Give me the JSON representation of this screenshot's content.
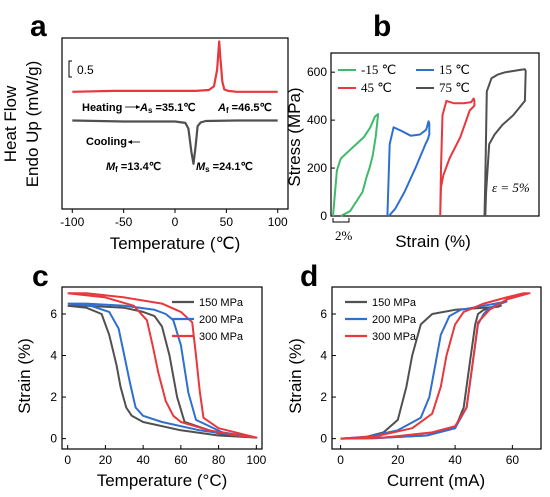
{
  "chart_data": [
    {
      "panel": "a",
      "type": "line",
      "xlabel": "Temperature (℃)",
      "ylabel_line1": "Heat Flow",
      "ylabel_line2": "Endo Up (mW/g)",
      "xlim": [
        -110,
        110
      ],
      "xticks": [
        "-100",
        "-50",
        "0",
        "50",
        "100"
      ],
      "xtick_values": [
        -100,
        -50,
        0,
        50,
        100
      ],
      "scale_bar_label": "0.5",
      "colors": {
        "heating": "#e8383d",
        "cooling": "#505050"
      },
      "labels": {
        "heating": "Heating",
        "cooling": "Cooling",
        "as_sym": "A",
        "as_sub": "s",
        "as_val": " =35.1℃",
        "af_sym": "A",
        "af_sub": "f",
        "af_val": " =46.5℃",
        "mf_sym": "M",
        "mf_sub": "f",
        "mf_val": " =13.4℃",
        "ms_sym": "M",
        "ms_sub": "s",
        "ms_val": " =24.1℃"
      },
      "series": [
        {
          "name": "Heating",
          "x": [
            -100,
            -60,
            -20,
            20,
            33,
            38,
            41,
            43,
            44,
            46,
            48,
            52,
            60,
            100
          ],
          "y": [
            0.28,
            0.3,
            0.3,
            0.3,
            0.32,
            0.4,
            0.75,
            1.35,
            1.05,
            0.5,
            0.33,
            0.3,
            0.28,
            0.28
          ]
        },
        {
          "name": "Cooling",
          "x": [
            -100,
            -50,
            0,
            10,
            13,
            16,
            18,
            20,
            22,
            25,
            30,
            60,
            100
          ],
          "y": [
            -0.33,
            -0.35,
            -0.35,
            -0.38,
            -0.5,
            -1.0,
            -1.25,
            -0.9,
            -0.45,
            -0.37,
            -0.34,
            -0.33,
            -0.33
          ]
        }
      ]
    },
    {
      "panel": "b",
      "type": "line",
      "xlabel": "Strain (%)",
      "ylabel": "Stress (MPa)",
      "ylim": [
        0,
        680
      ],
      "yticks": [
        "0",
        "200",
        "400",
        "600"
      ],
      "ytick_values": [
        0,
        200,
        400,
        600
      ],
      "scale_bar_label": "2%",
      "epsilon_label": "ε = 5%",
      "series": [
        {
          "name": "-15 ℃",
          "color": "#3dbb6a",
          "x": [
            0,
            0.25,
            0.5,
            1.0,
            1.5,
            2.0,
            2.4,
            2.7,
            2.9,
            2.75,
            2.55,
            2.35,
            2.15,
            1.9,
            1.1,
            0.5
          ],
          "y": [
            0,
            190,
            240,
            270,
            300,
            330,
            370,
            415,
            425,
            330,
            250,
            200,
            160,
            100,
            20,
            0
          ]
        },
        {
          "name": "15 ℃",
          "color": "#2f6fd0",
          "x": [
            3.5,
            3.65,
            3.9,
            4.4,
            5.0,
            5.6,
            6.0,
            6.15,
            6.2,
            6.2,
            6.1,
            5.95,
            5.3,
            4.6,
            4.0,
            3.6
          ],
          "y": [
            0,
            300,
            370,
            355,
            335,
            340,
            360,
            395,
            385,
            340,
            320,
            300,
            200,
            100,
            30,
            0
          ]
        },
        {
          "name": "45 ℃",
          "color": "#e8383d",
          "x": [
            6.9,
            6.95,
            7.05,
            7.3,
            7.8,
            8.4,
            8.9,
            9.05,
            9.1,
            9.1,
            8.8,
            8.2,
            7.5,
            7.1,
            6.95,
            6.9
          ],
          "y": [
            0,
            200,
            420,
            480,
            470,
            470,
            475,
            490,
            480,
            460,
            440,
            330,
            240,
            170,
            120,
            0
          ]
        },
        {
          "name": "75 ℃",
          "color": "#505050",
          "x": [
            9.75,
            9.8,
            9.9,
            10.2,
            10.6,
            11.1,
            11.6,
            12.1,
            12.35,
            12.4,
            12.35,
            11.6,
            10.9,
            10.4,
            10.05,
            9.85,
            9.8
          ],
          "y": [
            0,
            150,
            520,
            575,
            590,
            600,
            605,
            610,
            612,
            605,
            480,
            420,
            380,
            340,
            300,
            100,
            0
          ]
        }
      ]
    },
    {
      "panel": "c",
      "type": "line",
      "xlabel": "Temperature (°C)",
      "ylabel": "Strain (%)",
      "xlim": [
        -3,
        103
      ],
      "ylim": [
        -0.5,
        7.3
      ],
      "xticks": [
        "0",
        "20",
        "40",
        "60",
        "80",
        "100"
      ],
      "xtick_values": [
        0,
        20,
        40,
        60,
        80,
        100
      ],
      "yticks": [
        "0",
        "2",
        "4",
        "6"
      ],
      "ytick_values": [
        0,
        2,
        4,
        6
      ],
      "series": [
        {
          "name": "150 MPa",
          "color": "#505050",
          "x": [
            0,
            10,
            18,
            22,
            26,
            28,
            31,
            34,
            40,
            60,
            80,
            100,
            80,
            62,
            58,
            54,
            50,
            46,
            40,
            30,
            10,
            0
          ],
          "y": [
            6.4,
            6.3,
            6.0,
            5.0,
            3.5,
            2.5,
            1.5,
            1.1,
            0.8,
            0.4,
            0.15,
            0.05,
            0.25,
            0.8,
            2.0,
            4.0,
            5.4,
            5.9,
            6.1,
            6.3,
            6.4,
            6.4
          ]
        },
        {
          "name": "200 MPa",
          "color": "#2f6fd0",
          "x": [
            0,
            12,
            22,
            27,
            30,
            33,
            36,
            40,
            50,
            70,
            90,
            100,
            82,
            68,
            64,
            60,
            56,
            52,
            46,
            30,
            10,
            0
          ],
          "y": [
            6.5,
            6.4,
            6.1,
            5.3,
            4.0,
            2.7,
            1.5,
            1.1,
            0.8,
            0.4,
            0.15,
            0.05,
            0.3,
            0.9,
            2.2,
            4.5,
            5.7,
            6.0,
            6.2,
            6.4,
            6.5,
            6.5
          ]
        },
        {
          "name": "300 MPa",
          "color": "#e8383d",
          "x": [
            0,
            20,
            35,
            42,
            45,
            48,
            52,
            56,
            60,
            75,
            90,
            100,
            80,
            72,
            70,
            68,
            66,
            60,
            50,
            30,
            10,
            0
          ],
          "y": [
            7.0,
            6.8,
            6.4,
            5.7,
            4.5,
            3.2,
            1.8,
            1.1,
            0.8,
            0.4,
            0.15,
            0.05,
            0.5,
            1.0,
            2.3,
            4.0,
            5.6,
            6.1,
            6.5,
            6.8,
            7.0,
            7.0
          ]
        }
      ]
    },
    {
      "panel": "d",
      "type": "line",
      "xlabel": "Current (mA)",
      "ylabel": "Strain (%)",
      "xlim": [
        -3,
        70
      ],
      "ylim": [
        -0.5,
        7.3
      ],
      "xticks": [
        "0",
        "20",
        "40",
        "60"
      ],
      "xtick_values": [
        0,
        20,
        40,
        60
      ],
      "yticks": [
        "0",
        "2",
        "4",
        "6"
      ],
      "ytick_values": [
        0,
        2,
        4,
        6
      ],
      "series": [
        {
          "name": "150 MPa",
          "color": "#505050",
          "x": [
            0,
            10,
            30,
            40,
            43,
            45,
            47,
            48,
            50,
            56,
            55,
            50,
            40,
            32,
            28,
            25,
            23,
            20,
            15,
            8,
            0
          ],
          "y": [
            0,
            0.02,
            0.15,
            0.5,
            1.5,
            3.5,
            5.5,
            6.0,
            6.2,
            6.4,
            6.35,
            6.3,
            6.2,
            6.0,
            5.5,
            4.0,
            2.5,
            0.9,
            0.3,
            0.05,
            0
          ]
        },
        {
          "name": "200 MPa",
          "color": "#2f6fd0",
          "x": [
            0,
            12,
            30,
            40,
            44,
            46,
            48,
            50,
            52,
            58,
            56,
            50,
            42,
            38,
            35,
            33,
            31,
            28,
            20,
            10,
            0
          ],
          "y": [
            0,
            0.02,
            0.15,
            0.5,
            1.5,
            3.5,
            5.5,
            6.0,
            6.3,
            6.6,
            6.55,
            6.4,
            6.2,
            5.9,
            5.0,
            3.5,
            2.0,
            1.0,
            0.4,
            0.1,
            0
          ]
        },
        {
          "name": "300 MPa",
          "color": "#e8383d",
          "x": [
            0,
            15,
            32,
            40,
            44,
            46,
            48,
            52,
            58,
            66,
            64,
            58,
            50,
            43,
            40,
            37,
            35,
            32,
            25,
            12,
            0
          ],
          "y": [
            0,
            0.05,
            0.3,
            0.6,
            1.5,
            3.5,
            5.6,
            6.2,
            6.7,
            7.0,
            7.0,
            6.8,
            6.5,
            6.1,
            5.5,
            4.0,
            2.5,
            1.2,
            0.5,
            0.1,
            0
          ]
        }
      ]
    }
  ],
  "panel_labels": [
    "a",
    "b",
    "c",
    "d"
  ]
}
